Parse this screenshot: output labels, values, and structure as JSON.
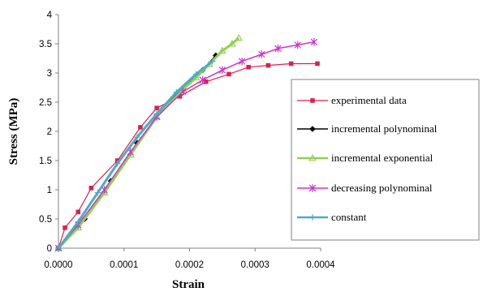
{
  "chart_data": {
    "type": "line",
    "xlabel": "Strain",
    "ylabel": "Stress (MPa)",
    "xlim": [
      0,
      0.0004
    ],
    "ylim": [
      0,
      4
    ],
    "x_ticks": [
      "0.0000",
      "0.0001",
      "0.0002",
      "0.0003",
      "0.0004"
    ],
    "y_ticks": [
      "0",
      "0.5",
      "1",
      "1.5",
      "2",
      "2.5",
      "3",
      "3.5",
      "4"
    ],
    "grid": false,
    "legend_position": "right",
    "series": [
      {
        "name": "experimental data",
        "color": "#d9224f",
        "marker": "square",
        "x": [
          0,
          1e-05,
          3e-05,
          5e-05,
          9e-05,
          0.000125,
          0.00015,
          0.000185,
          0.000225,
          0.00026,
          0.00029,
          0.00032,
          0.000355,
          0.000395
        ],
        "y": [
          0,
          0.35,
          0.62,
          1.03,
          1.5,
          2.07,
          2.4,
          2.6,
          2.85,
          2.98,
          3.1,
          3.13,
          3.16,
          3.16
        ]
      },
      {
        "name": "incremental polynominal",
        "color": "#000000",
        "marker": "diamond",
        "x": [
          0,
          4e-05,
          8e-05,
          0.00012,
          0.00016,
          0.000195,
          0.00022,
          0.00024
        ],
        "y": [
          0,
          0.5,
          1.15,
          1.8,
          2.4,
          2.8,
          3.05,
          3.3
        ]
      },
      {
        "name": "incremental exponential",
        "color": "#92d050",
        "marker": "triangle",
        "x": [
          0,
          3e-05,
          7e-05,
          0.00011,
          0.00015,
          0.00019,
          0.00021,
          0.00023,
          0.00025,
          0.000265,
          0.000275
        ],
        "y": [
          0,
          0.35,
          0.95,
          1.6,
          2.25,
          2.72,
          2.92,
          3.15,
          3.38,
          3.5,
          3.6
        ]
      },
      {
        "name": "decreasing polynominal",
        "color": "#cc33cc",
        "marker": "star",
        "x": [
          0,
          3e-05,
          7e-05,
          0.00011,
          0.00015,
          0.00019,
          0.00022,
          0.00025,
          0.00028,
          0.00031,
          0.000335,
          0.000365,
          0.00039
        ],
        "y": [
          0,
          0.4,
          1.0,
          1.65,
          2.25,
          2.68,
          2.88,
          3.05,
          3.2,
          3.32,
          3.42,
          3.48,
          3.53
        ]
      },
      {
        "name": "constant",
        "color": "#4bacc6",
        "marker": "plus",
        "x": [
          0,
          3e-05,
          6e-05,
          9e-05,
          0.00012,
          0.00015,
          0.00018,
          0.00021,
          0.000235
        ],
        "y": [
          0,
          0.45,
          0.95,
          1.45,
          1.9,
          2.3,
          2.67,
          2.98,
          3.2
        ]
      }
    ]
  }
}
